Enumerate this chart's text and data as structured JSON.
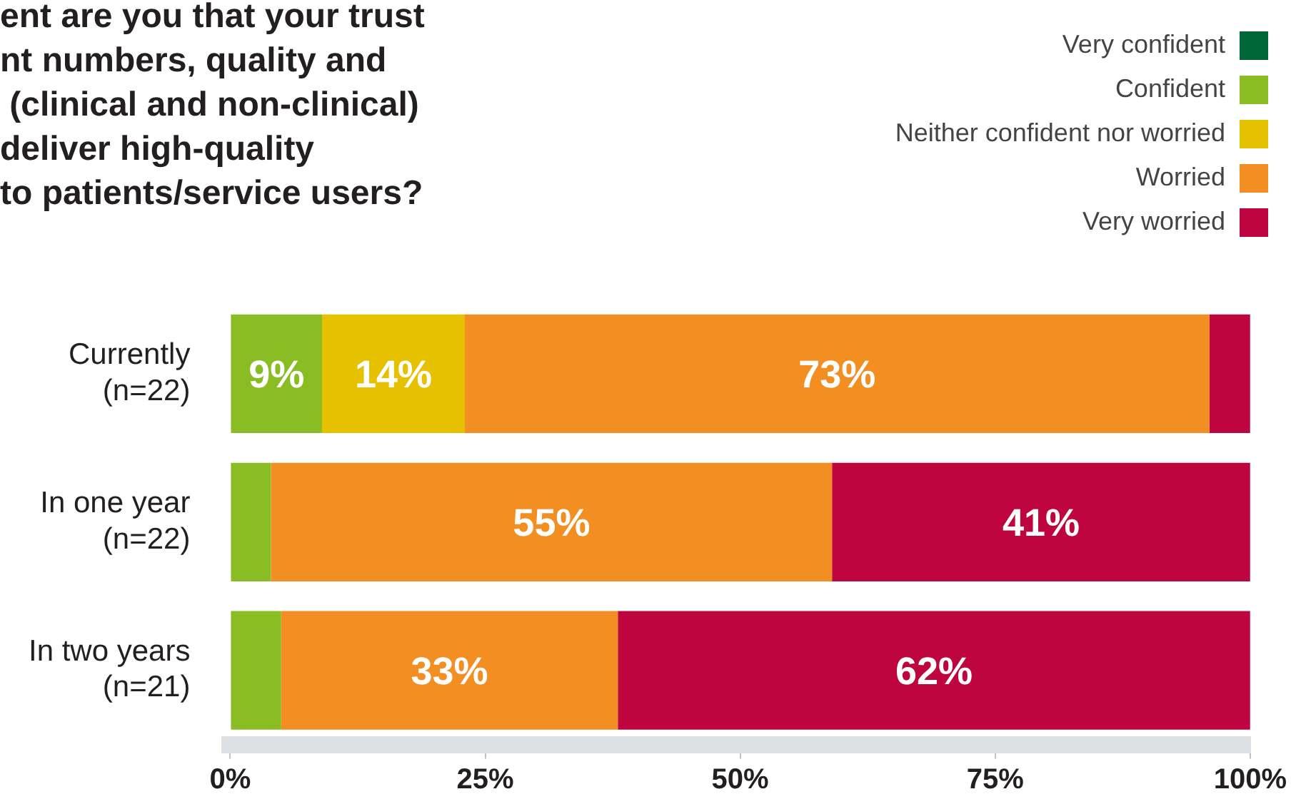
{
  "chart_data": {
    "type": "bar",
    "orientation": "horizontal",
    "stacked": true,
    "title": "ent are you that your trust\nnt numbers, quality and\n (clinical and non-clinical)\ndeliver high-quality\nto patients/service users?",
    "categories": [
      "Currently\n(n=22)",
      "In one year\n(n=22)",
      "In two years\n(n=21)"
    ],
    "series": [
      {
        "name": "Very confident",
        "color": "#006838",
        "values": [
          0,
          0,
          0
        ],
        "value_labels": [
          null,
          null,
          null
        ]
      },
      {
        "name": "Confident",
        "color": "#8abd24",
        "values": [
          9,
          4,
          5
        ],
        "value_labels": [
          "9%",
          null,
          null
        ]
      },
      {
        "name": "Neither confident nor worried",
        "color": "#e5c100",
        "values": [
          14,
          0,
          0
        ],
        "value_labels": [
          "14%",
          null,
          null
        ]
      },
      {
        "name": "Worried",
        "color": "#f28e22",
        "values": [
          73,
          55,
          33
        ],
        "value_labels": [
          "73%",
          "55%",
          "33%"
        ]
      },
      {
        "name": "Very worried",
        "color": "#be053f",
        "values": [
          4,
          41,
          62
        ],
        "value_labels": [
          null,
          "41%",
          "62%"
        ]
      }
    ],
    "xlim": [
      0,
      100
    ],
    "xticks": [
      {
        "value": 0,
        "label": "0%"
      },
      {
        "value": 25,
        "label": "25%"
      },
      {
        "value": 50,
        "label": "50%"
      },
      {
        "value": 75,
        "label": "75%"
      },
      {
        "value": 100,
        "label": "100%"
      }
    ],
    "grid": false,
    "legend": "top right"
  }
}
